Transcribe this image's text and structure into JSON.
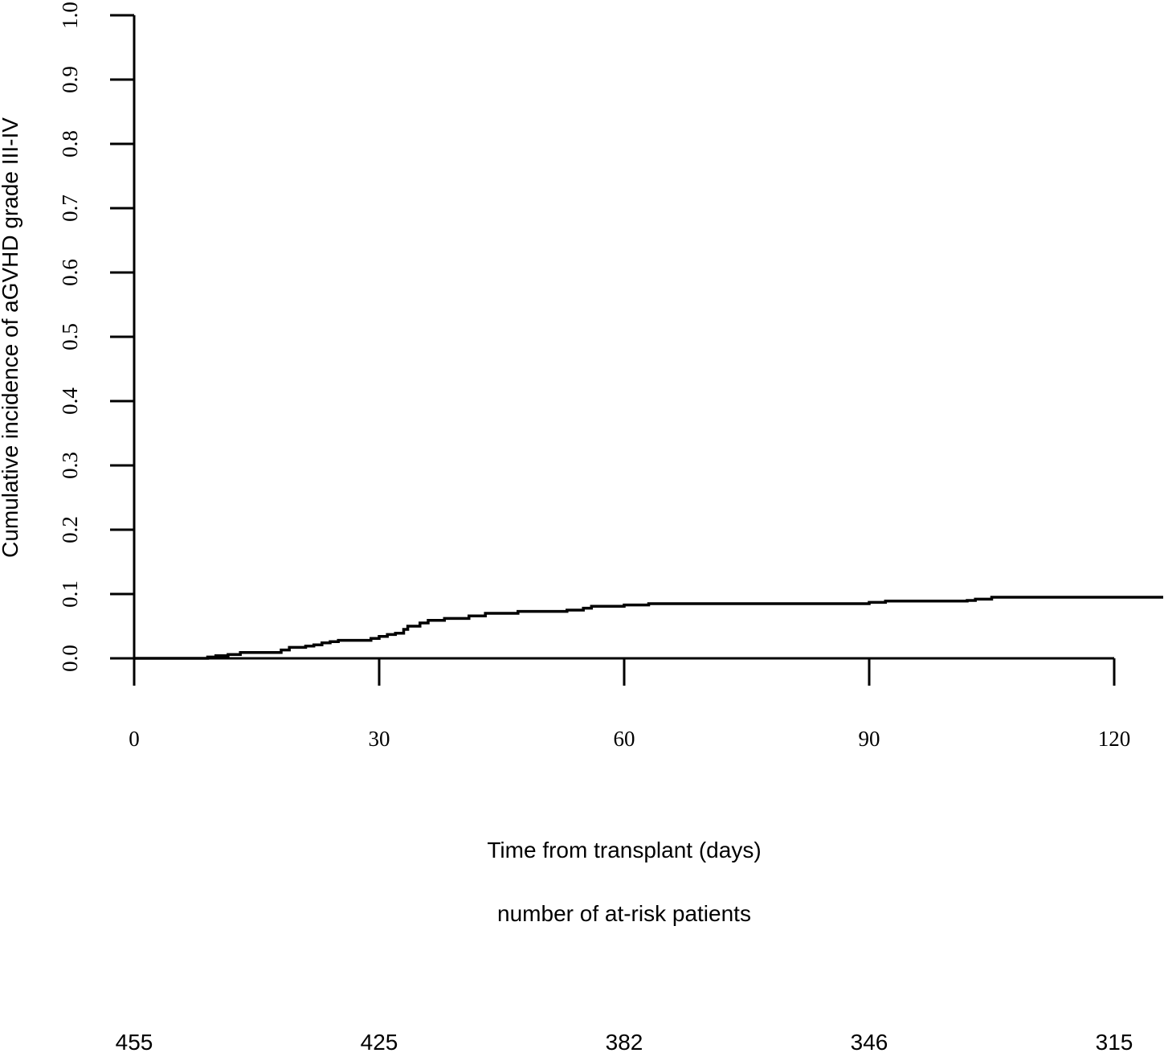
{
  "chart_data": {
    "type": "line",
    "title": "",
    "xlabel": "Time from transplant (days)",
    "ylabel": "Cumulative incidence of aGVHD grade III-IV",
    "xlim": [
      0,
      126
    ],
    "ylim": [
      0,
      1
    ],
    "x_ticks": [
      0,
      30,
      60,
      90,
      120
    ],
    "x_tick_labels": [
      "0",
      "30",
      "60",
      "90",
      "120"
    ],
    "y_ticks": [
      0,
      0.1,
      0.2,
      0.3,
      0.4,
      0.5,
      0.6,
      0.7,
      0.8,
      0.9,
      1.0
    ],
    "y_tick_labels": [
      "0.0",
      "0.1",
      "0.2",
      "0.3",
      "0.4",
      "0.5",
      "0.6",
      "0.7",
      "0.8",
      "0.9",
      "1.0"
    ],
    "grid": false,
    "line_color": "#000000",
    "series": [
      {
        "step": true,
        "x": [
          0,
          9,
          10,
          11.5,
          13,
          18,
          19,
          21,
          22,
          23,
          24,
          25,
          29,
          30,
          31,
          32,
          33,
          33.5,
          35,
          36,
          38,
          41,
          43,
          47,
          53,
          55,
          56,
          60,
          63,
          75,
          90,
          92,
          102,
          103,
          105,
          126
        ],
        "y": [
          0,
          0.002,
          0.004,
          0.006,
          0.009,
          0.013,
          0.017,
          0.019,
          0.021,
          0.024,
          0.026,
          0.028,
          0.031,
          0.034,
          0.037,
          0.039,
          0.045,
          0.05,
          0.055,
          0.059,
          0.062,
          0.066,
          0.07,
          0.073,
          0.075,
          0.078,
          0.081,
          0.083,
          0.085,
          0.085,
          0.087,
          0.089,
          0.09,
          0.092,
          0.095,
          0.095
        ]
      }
    ]
  },
  "risk_table": {
    "title": "number of at-risk patients",
    "values": [
      "455",
      "425",
      "382",
      "346",
      "315"
    ]
  }
}
